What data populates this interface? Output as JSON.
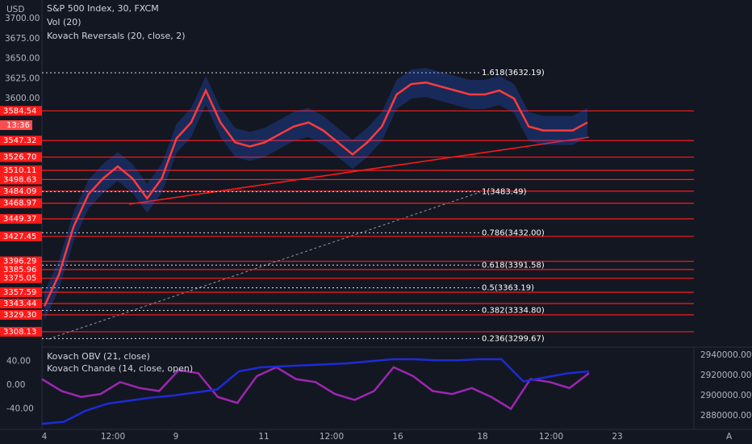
{
  "header": {
    "symbol": "S&P 500 Index, 30, FXCM",
    "vol": "Vol (20)",
    "reversals": "Kovach Reversals (20, close, 2)"
  },
  "price_axis": {
    "currency": "USD",
    "ticks": [
      "3700.00",
      "3675.00",
      "3650.00",
      "3625.00",
      "3600.00"
    ]
  },
  "levels": [
    "3584.54",
    "3547.32",
    "3526.70",
    "3510.11",
    "3498.63",
    "3484.09",
    "3468.97",
    "3449.37",
    "3427.45",
    "3396.29",
    "3385.96",
    "3375.05",
    "3357.59",
    "3343.44",
    "3329.30",
    "3308.13"
  ],
  "countdown": "13:36",
  "fib": [
    "1.618(3632.19)",
    "1(3483.49)",
    "0.786(3432.00)",
    "0.618(3391.58)",
    "0.5(3363.19)",
    "0.382(3334.80)",
    "0.236(3299.67)"
  ],
  "time_axis": [
    "4",
    "12:00",
    "9",
    "11",
    "12:00",
    "16",
    "18",
    "12:00",
    "23"
  ],
  "lower": {
    "obv": "Kovach OBV (21, close)",
    "chande": "Kovach Chande (14, close, open)",
    "left_ticks": [
      "40.00",
      "0.00",
      "-40.00"
    ],
    "right_ticks": [
      "2940000.00",
      "2920000.00",
      "2900000.00",
      "2880000.00"
    ]
  },
  "series": {
    "price": [
      3340,
      3380,
      3440,
      3480,
      3500,
      3515,
      3500,
      3475,
      3500,
      3550,
      3570,
      3610,
      3570,
      3545,
      3540,
      3545,
      3555,
      3565,
      3570,
      3560,
      3545,
      3530,
      3545,
      3565,
      3605,
      3618,
      3620,
      3615,
      3610,
      3605,
      3605,
      3610,
      3600,
      3565,
      3560,
      3560,
      3560,
      3570
    ],
    "obv": [
      2872000,
      2874000,
      2885000,
      2892000,
      2895000,
      2898000,
      2900000,
      2903000,
      2906000,
      2924000,
      2928000,
      2929000,
      2930000,
      2931000,
      2932000,
      2934000,
      2936000,
      2936000,
      2935000,
      2935000,
      2936000,
      2936000,
      2914000,
      2918000,
      2922000,
      2924000
    ],
    "chande": [
      10,
      -10,
      -20,
      -15,
      5,
      -5,
      -10,
      25,
      20,
      -20,
      -30,
      15,
      30,
      10,
      5,
      -15,
      -25,
      -10,
      30,
      15,
      -10,
      -15,
      -5,
      -20,
      -40,
      10,
      5,
      -5,
      20
    ]
  }
}
